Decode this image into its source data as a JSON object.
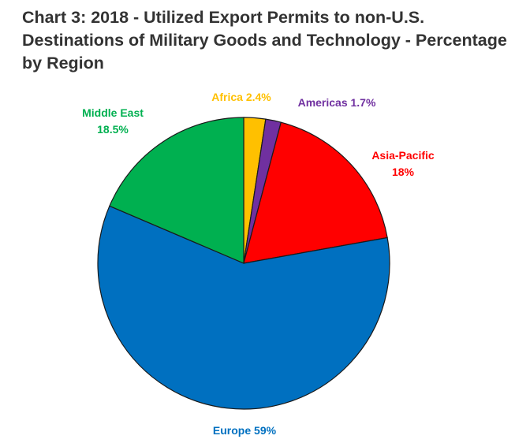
{
  "chart_data": {
    "type": "pie",
    "title": "Chart 3: 2018 - Utilized Export Permits to non-U.S. Destinations of Military Goods and Technology - Percentage by Region",
    "slices": [
      {
        "name": "Africa",
        "value": 2.4,
        "color": "#FFC000",
        "label_lines": [
          "Africa 2.4%"
        ]
      },
      {
        "name": "Americas",
        "value": 1.7,
        "color": "#7030A0",
        "label_lines": [
          "Americas 1.7%"
        ]
      },
      {
        "name": "Asia-Pacific",
        "value": 18,
        "color": "#FF0000",
        "label_lines": [
          "Asia-Pacific",
          "18%"
        ]
      },
      {
        "name": "Europe",
        "value": 59,
        "color": "#0070C0",
        "label_lines": [
          "Europe 59%"
        ]
      },
      {
        "name": "Middle East",
        "value": 18.5,
        "color": "#00B050",
        "label_lines": [
          "Middle East",
          "18.5%"
        ]
      }
    ],
    "start_angle": "12 o'clock",
    "direction": "clockwise",
    "legend": "none"
  }
}
